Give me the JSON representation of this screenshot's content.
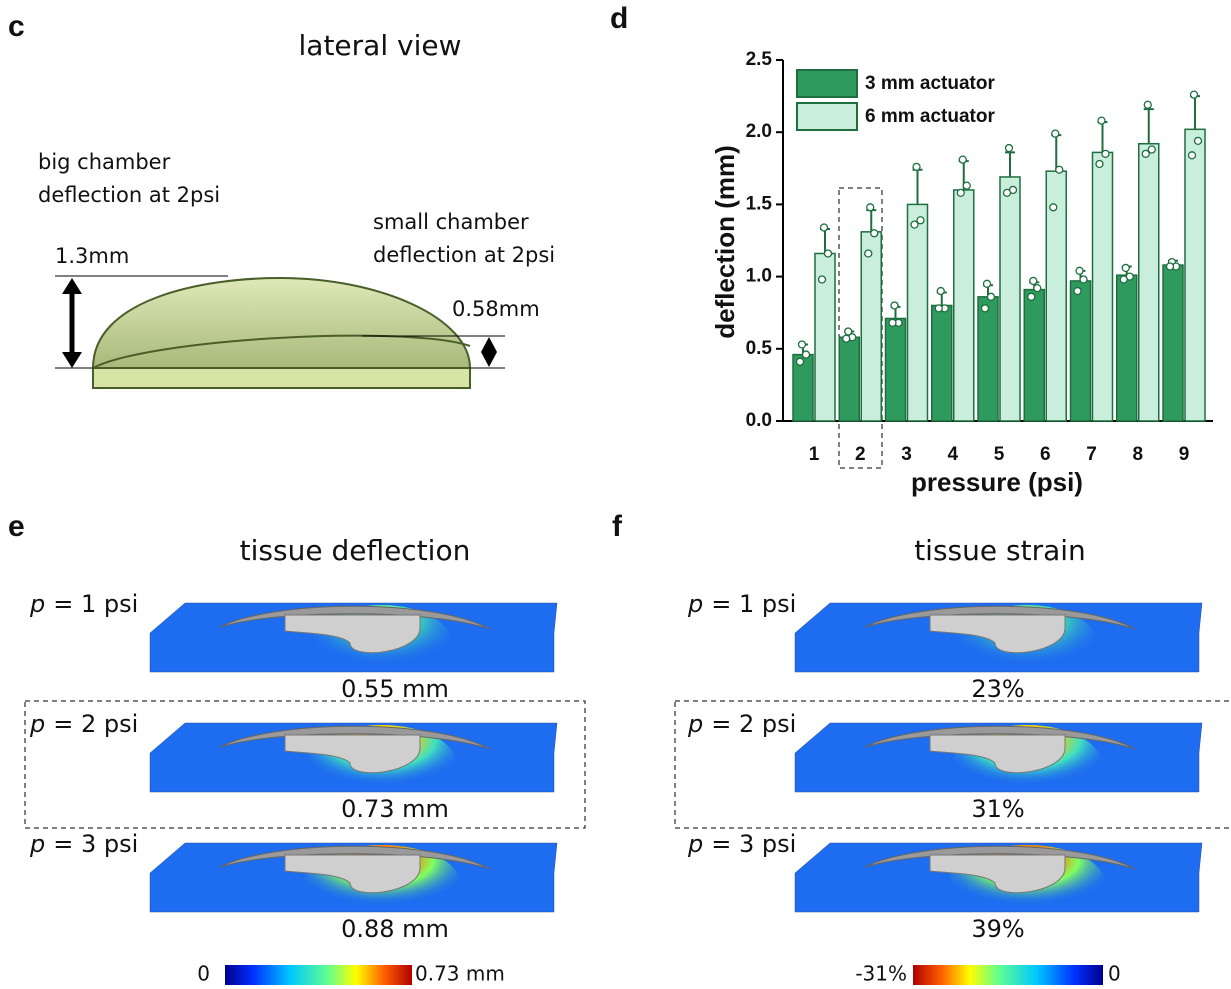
{
  "panel_c": {
    "letter": "c",
    "title": "lateral view",
    "big_chamber": [
      "big chamber",
      "deflection at 2psi"
    ],
    "small_chamber": [
      "small chamber",
      "deflection at 2psi"
    ],
    "big_value": "1.3mm",
    "small_value": "0.58mm"
  },
  "chart_data": {
    "type": "bar",
    "panel_label": "d",
    "x_label": "pressure (psi)",
    "y_label": "deflection (mm)",
    "categories": [
      "1",
      "2",
      "3",
      "4",
      "5",
      "6",
      "7",
      "8",
      "9"
    ],
    "series": [
      {
        "name": "3 mm actuator",
        "color": "#2e9a5e",
        "values": [
          0.46,
          0.58,
          0.71,
          0.8,
          0.86,
          0.91,
          0.97,
          1.01,
          1.08
        ],
        "error": [
          0.07,
          0.04,
          0.08,
          0.09,
          0.08,
          0.05,
          0.07,
          0.06,
          0.03
        ],
        "points": [
          [
            0.53,
            0.46,
            0.41
          ],
          [
            0.62,
            0.58,
            0.57
          ],
          [
            0.8,
            0.68,
            0.68
          ],
          [
            0.9,
            0.78,
            0.78
          ],
          [
            0.95,
            0.86,
            0.78
          ],
          [
            0.97,
            0.92,
            0.86
          ],
          [
            1.04,
            0.98,
            0.9
          ],
          [
            1.06,
            1.0,
            0.98
          ],
          [
            1.1,
            1.07,
            1.07
          ]
        ]
      },
      {
        "name": "6 mm actuator",
        "color": "#c9eedb",
        "values": [
          1.16,
          1.31,
          1.5,
          1.6,
          1.69,
          1.73,
          1.86,
          1.92,
          2.02
        ],
        "error": [
          0.17,
          0.15,
          0.24,
          0.2,
          0.17,
          0.25,
          0.21,
          0.24,
          0.23
        ],
        "points": [
          [
            1.34,
            1.16,
            0.98
          ],
          [
            1.48,
            1.3,
            1.16
          ],
          [
            1.76,
            1.39,
            1.36
          ],
          [
            1.81,
            1.63,
            1.58
          ],
          [
            1.89,
            1.6,
            1.58
          ],
          [
            1.99,
            1.74,
            1.48
          ],
          [
            2.08,
            1.85,
            1.78
          ],
          [
            2.19,
            1.88,
            1.85
          ],
          [
            2.26,
            1.94,
            1.84
          ]
        ]
      }
    ],
    "ylim": [
      0,
      2.5
    ],
    "yticks": [
      {
        "value": 0,
        "label": "0.0"
      },
      0.5,
      {
        "value": 1,
        "label": "1.0"
      },
      1.5,
      {
        "value": 2,
        "label": "2.0"
      },
      2.5
    ],
    "legend": "upper left"
  },
  "panel_e": {
    "letter": "e",
    "title": "tissue deflection",
    "rows": [
      {
        "var": "p",
        "label": "= 1 psi",
        "value": "0.55 mm"
      },
      {
        "var": "p",
        "label": "= 2 psi",
        "value": "0.73 mm"
      },
      {
        "var": "p",
        "label": "= 3 psi",
        "value": "0.88 mm"
      }
    ],
    "colorbar": {
      "min": "0",
      "max": "0.73 mm"
    }
  },
  "panel_f": {
    "letter": "f",
    "title": "tissue strain",
    "rows": [
      {
        "var": "p",
        "label": "= 1 psi",
        "value": "23%"
      },
      {
        "var": "p",
        "label": "= 2 psi",
        "value": "31%"
      },
      {
        "var": "p",
        "label": "= 3 psi",
        "value": "39%"
      }
    ],
    "colorbar": {
      "min": "-31%",
      "max": "0"
    }
  }
}
